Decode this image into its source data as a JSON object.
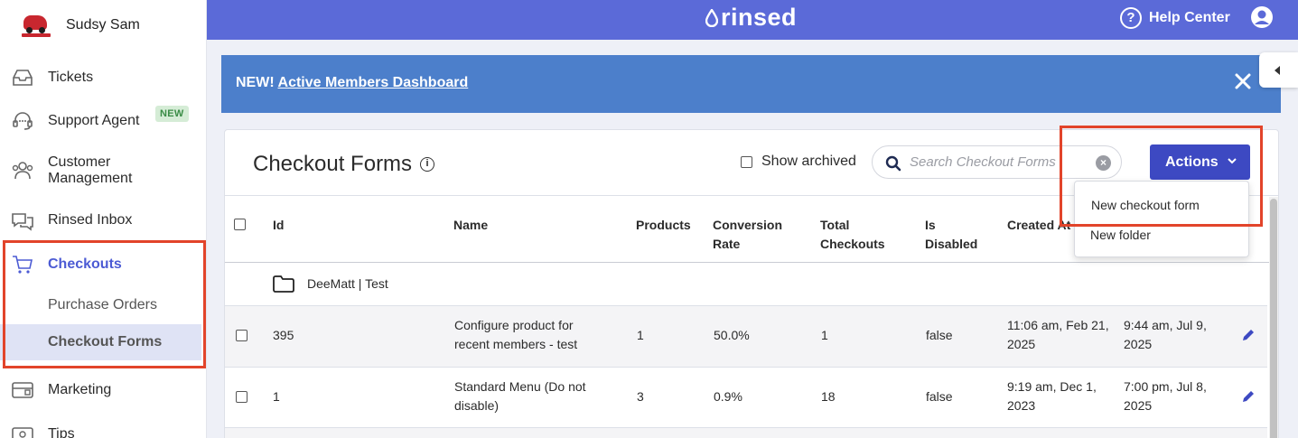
{
  "sidebar": {
    "account_name": "Sudsy Sam",
    "items": [
      {
        "label": "Tickets",
        "icon": "inbox-tray-icon"
      },
      {
        "label": "Support Agent",
        "icon": "headset-icon",
        "badge": "NEW"
      },
      {
        "label": "Customer Management",
        "icon": "users-icon"
      },
      {
        "label": "Rinsed Inbox",
        "icon": "chat-bubbles-icon"
      },
      {
        "label": "Checkouts",
        "icon": "cart-icon",
        "active": true
      },
      {
        "label": "Marketing",
        "icon": "mail-icon"
      },
      {
        "label": "Tips",
        "icon": "money-icon"
      }
    ],
    "sub_items": [
      {
        "label": "Purchase Orders"
      },
      {
        "label": "Checkout Forms",
        "active": true
      }
    ]
  },
  "header": {
    "logo_text": "rinsed",
    "help_label": "Help Center"
  },
  "banner": {
    "prefix": "NEW!",
    "link_text": "Active Members Dashboard"
  },
  "page": {
    "title": "Checkout Forms",
    "show_archived_label": "Show archived",
    "search_placeholder": "Search Checkout Forms",
    "actions_label": "Actions",
    "actions_menu": [
      "New checkout form",
      "New folder"
    ]
  },
  "table": {
    "columns": [
      "Id",
      "Name",
      "Products",
      "Conversion Rate",
      "Total Checkouts",
      "Is Disabled",
      "Created At"
    ],
    "folder": "DeeMatt | Test",
    "rows": [
      {
        "id": "395",
        "name": "Configure product for recent members - test",
        "products": "1",
        "conversion": "50.0%",
        "checkouts": "1",
        "disabled": "false",
        "created": "11:06 am, Feb 21, 2025",
        "updated": "9:44 am, Jul 9, 2025"
      },
      {
        "id": "1",
        "name": "Standard Menu (Do not disable)",
        "products": "3",
        "conversion": "0.9%",
        "checkouts": "18",
        "disabled": "false",
        "created": "9:19 am, Dec 1, 2023",
        "updated": "7:00 pm, Jul 8, 2025"
      }
    ]
  },
  "colors": {
    "header_bg": "#5b6ad8",
    "banner_bg": "#4c7fcb",
    "primary_button": "#3d49c2",
    "highlight_box": "#e2442a",
    "active_nav": "#4c5bd4"
  }
}
